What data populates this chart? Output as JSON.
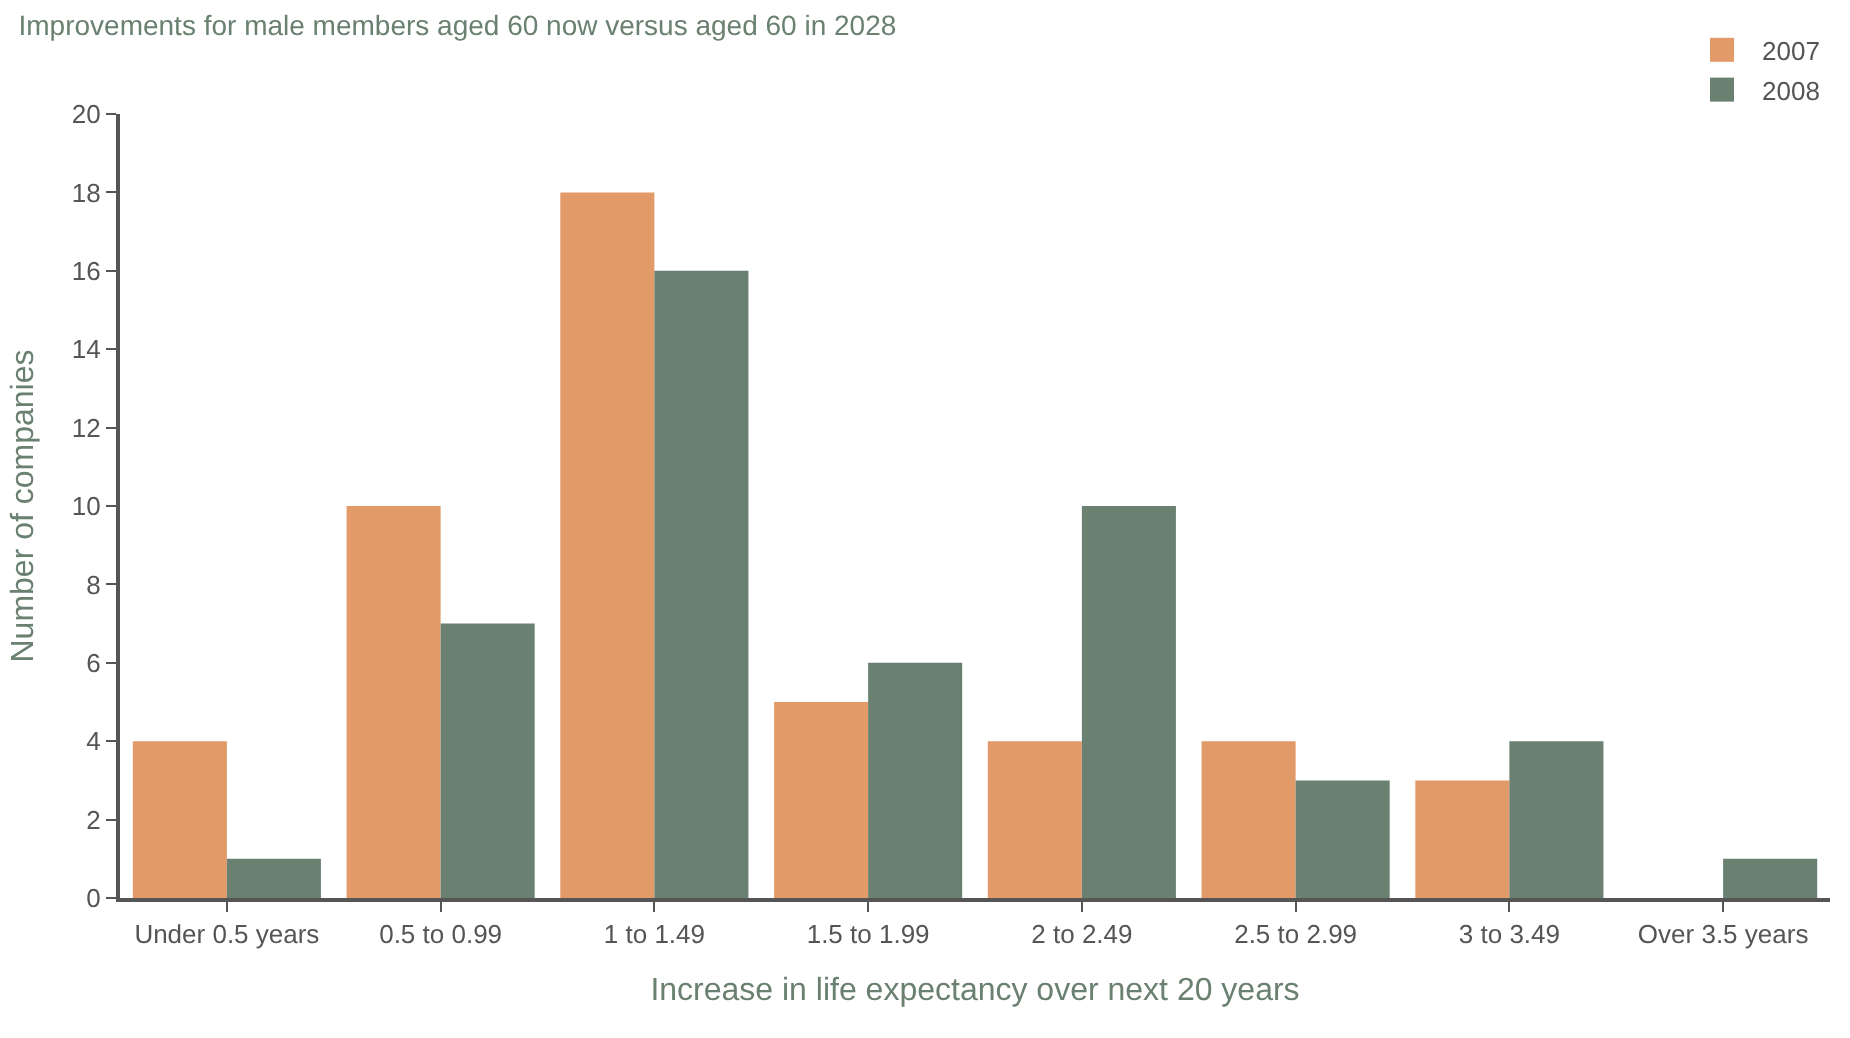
{
  "chart_data": {
    "type": "bar",
    "title": "Improvements for male members aged 60 now versus aged 60 in 2028",
    "xlabel": "Increase in life expectancy over next 20 years",
    "ylabel": "Number of companies",
    "categories": [
      "Under 0.5 years",
      "0.5 to 0.99",
      "1 to 1.49",
      "1.5 to 1.99",
      "2 to 2.49",
      "2.5 to 2.99",
      "3 to 3.49",
      "Over 3.5 years"
    ],
    "series": [
      {
        "name": "2007",
        "color": "#e39a69",
        "values": [
          4,
          10,
          18,
          5,
          4,
          4,
          3,
          0
        ]
      },
      {
        "name": "2008",
        "color": "#6a8070",
        "values": [
          1,
          7,
          16,
          6,
          10,
          3,
          4,
          1
        ]
      }
    ],
    "ylim": [
      0,
      20
    ],
    "yticks": [
      0,
      2,
      4,
      6,
      8,
      10,
      12,
      14,
      16,
      18,
      20
    ],
    "legend": "top right"
  }
}
